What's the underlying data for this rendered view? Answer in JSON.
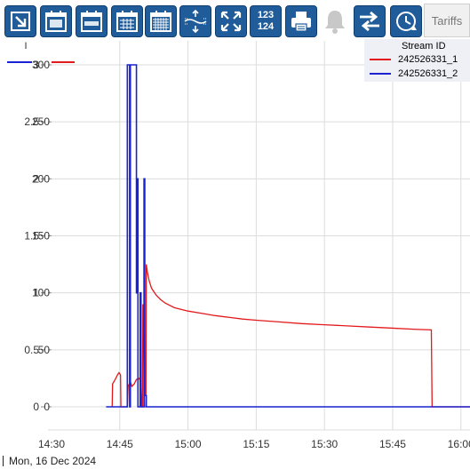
{
  "toolbar": {
    "buttons": [
      {
        "icon": "export-icon"
      },
      {
        "icon": "calendar-day-icon"
      },
      {
        "icon": "calendar-week-icon"
      },
      {
        "icon": "calendar-month-icon"
      },
      {
        "icon": "calendar-year-icon"
      },
      {
        "icon": "expand-vertical-icon"
      },
      {
        "icon": "fullscreen-icon"
      },
      {
        "icon": "number-format-icon",
        "line1": "123",
        "line2": "124"
      },
      {
        "icon": "print-icon"
      },
      {
        "icon": "bell-icon"
      },
      {
        "icon": "swap-arrows-icon"
      },
      {
        "icon": "clock-refresh-icon"
      }
    ],
    "tab_label": "Tariffs"
  },
  "legend": {
    "title": "Stream ID",
    "items": [
      {
        "name": "242526331_1",
        "color": "#e31a1c"
      },
      {
        "name": "242526331_2",
        "color": "#1a22d1"
      }
    ]
  },
  "footer": {
    "date": "Mon, 16 Dec 2024"
  },
  "chart_data": {
    "type": "line",
    "xlabel": "",
    "x_tick_labels": [
      "14:30",
      "14:45",
      "15:00",
      "15:15",
      "15:30",
      "15:45",
      "16:00"
    ],
    "xlim": [
      "14:30",
      "16:02"
    ],
    "left_axis": {
      "label": "I",
      "ticks": [
        "0",
        "0.5",
        "1",
        "1.5",
        "2",
        "2.5",
        "3"
      ],
      "ylim": [
        0,
        3
      ],
      "color": "#1a22d1"
    },
    "right_axis": {
      "ticks": [
        "0",
        "50",
        "100",
        "150",
        "200",
        "250",
        "300"
      ],
      "ylim": [
        0,
        300
      ],
      "color": "#e31a1c"
    },
    "grid": true,
    "legend_position": "top-right",
    "series": [
      {
        "name": "242526331_1",
        "axis": "right",
        "color": "#e31a1c",
        "points": [
          [
            "14:43:20",
            0
          ],
          [
            "14:43:25",
            20
          ],
          [
            "14:44:00",
            24
          ],
          [
            "14:44:30",
            28
          ],
          [
            "14:44:50",
            30
          ],
          [
            "14:45:10",
            28
          ],
          [
            "14:45:15",
            0
          ],
          [
            "14:46:40",
            0
          ],
          [
            "14:46:50",
            18
          ],
          [
            "14:47:20",
            22
          ],
          [
            "14:47:40",
            18
          ],
          [
            "14:48:10",
            20
          ],
          [
            "14:48:40",
            24
          ],
          [
            "14:49:20",
            25
          ],
          [
            "14:49:40",
            20
          ],
          [
            "14:49:50",
            0
          ],
          [
            "14:50:00",
            0
          ],
          [
            "14:50:05",
            90
          ],
          [
            "14:50:15",
            70
          ],
          [
            "14:50:25",
            0
          ],
          [
            "14:50:45",
            0
          ],
          [
            "14:50:50",
            125
          ],
          [
            "14:51:05",
            118
          ],
          [
            "14:51:30",
            110
          ],
          [
            "14:52:00",
            104
          ],
          [
            "14:53:00",
            98
          ],
          [
            "14:54:00",
            94
          ],
          [
            "14:55:00",
            91
          ],
          [
            "14:57:00",
            87
          ],
          [
            "15:00:00",
            84
          ],
          [
            "15:03:00",
            82
          ],
          [
            "15:06:00",
            80
          ],
          [
            "15:09:00",
            78.5
          ],
          [
            "15:12:00",
            77
          ],
          [
            "15:15:00",
            76
          ],
          [
            "15:20:00",
            74.5
          ],
          [
            "15:25:00",
            73
          ],
          [
            "15:30:00",
            72
          ],
          [
            "15:35:00",
            71
          ],
          [
            "15:40:00",
            70
          ],
          [
            "15:45:00",
            69
          ],
          [
            "15:50:00",
            68
          ],
          [
            "15:53:30",
            67.5
          ],
          [
            "15:53:40",
            0
          ],
          [
            "16:02:00",
            0
          ]
        ]
      },
      {
        "name": "242526331_2",
        "axis": "left",
        "color": "#1a22d1",
        "points": [
          [
            "14:42:00",
            0
          ],
          [
            "14:46:40",
            0
          ],
          [
            "14:46:40",
            3
          ],
          [
            "14:47:10",
            3
          ],
          [
            "14:47:10",
            0
          ],
          [
            "14:47:20",
            0
          ],
          [
            "14:47:20",
            3
          ],
          [
            "14:48:40",
            3
          ],
          [
            "14:48:40",
            1
          ],
          [
            "14:48:50",
            1
          ],
          [
            "14:48:50",
            2
          ],
          [
            "14:49:00",
            2
          ],
          [
            "14:49:00",
            0
          ],
          [
            "14:49:30",
            0
          ],
          [
            "14:49:30",
            1
          ],
          [
            "14:49:40",
            1
          ],
          [
            "14:49:40",
            0
          ],
          [
            "14:50:20",
            0
          ],
          [
            "14:50:20",
            2
          ],
          [
            "14:50:30",
            2
          ],
          [
            "14:50:30",
            0.1
          ],
          [
            "14:50:50",
            0.1
          ],
          [
            "14:50:50",
            0
          ],
          [
            "16:02:00",
            0
          ]
        ]
      }
    ]
  }
}
